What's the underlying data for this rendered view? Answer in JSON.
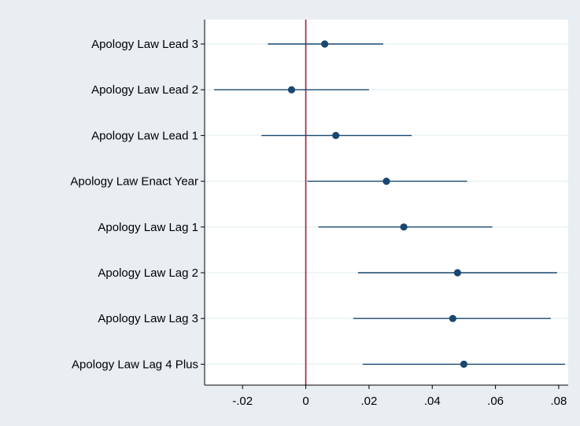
{
  "chart_data": {
    "type": "scatter",
    "subtype": "coefficient-plot",
    "orientation": "horizontal",
    "categories": [
      "Apology Law Lead 3",
      "Apology Law Lead 2",
      "Apology Law Lead 1",
      "Apology Law Enact Year",
      "Apology Law Lag 1",
      "Apology Law Lag 2",
      "Apology Law Lag 3",
      "Apology Law Lag 4 Plus"
    ],
    "estimates": [
      0.006,
      -0.0045,
      0.0095,
      0.0255,
      0.031,
      0.048,
      0.0465,
      0.05
    ],
    "ci_low": [
      -0.012,
      -0.029,
      -0.014,
      0.0005,
      0.004,
      0.0165,
      0.015,
      0.018
    ],
    "ci_high": [
      0.0245,
      0.02,
      0.0335,
      0.051,
      0.059,
      0.0795,
      0.0775,
      0.082
    ],
    "x_ticks": [
      -0.02,
      0,
      0.02,
      0.04,
      0.06,
      0.08
    ],
    "x_tick_labels": [
      "-.02",
      "0",
      ".02",
      ".04",
      ".06",
      ".08"
    ],
    "xlim": [
      -0.032,
      0.083
    ],
    "reference_line_x": 0,
    "grid": "horizontal",
    "title": "",
    "xlabel": "",
    "ylabel": "",
    "colors": {
      "background": "#e8eef2",
      "plot_background": "#ffffff",
      "marker": "#1a476f",
      "reference_line": "#a0203c",
      "grid": "#eaf2f3"
    }
  }
}
